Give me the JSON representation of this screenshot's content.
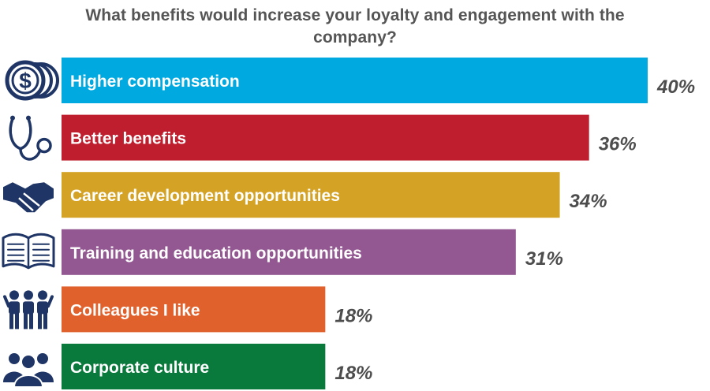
{
  "chart_data": {
    "type": "bar",
    "orientation": "horizontal",
    "title": "What benefits would increase your loyalty and engagement with the company?",
    "categories": [
      "Higher compensation",
      "Better benefits",
      "Career development opportunities",
      "Training and education opportunities",
      "Colleagues I like",
      "Corporate culture"
    ],
    "values": [
      40,
      36,
      34,
      31,
      18,
      18
    ],
    "value_labels": [
      "40%",
      "36%",
      "34%",
      "31%",
      "18%",
      "18%"
    ],
    "unit": "%",
    "colors": [
      "#00a9df",
      "#be1e2d",
      "#d4a225",
      "#935891",
      "#e0612b",
      "#0a7a3c"
    ],
    "icons": [
      "dollar-coins-icon",
      "stethoscope-icon",
      "handshake-icon",
      "open-book-icon",
      "colleagues-icon",
      "group-icon"
    ],
    "xlim": [
      0,
      40
    ],
    "grid": false,
    "legend": "none"
  }
}
